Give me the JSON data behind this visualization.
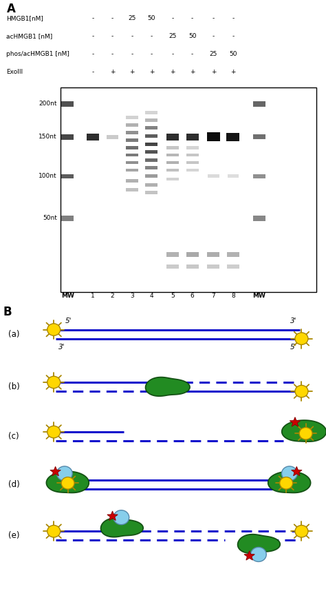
{
  "title_A": "A",
  "title_B": "B",
  "row_labels": [
    "HMGB1[nM]",
    "acHMGB1 [nM]",
    "phos/acHMGB1 [nM]",
    "ExoIII"
  ],
  "row_values": [
    [
      "-",
      "-",
      "25",
      "50",
      "-",
      "-",
      "-",
      "-"
    ],
    [
      "-",
      "-",
      "-",
      "-",
      "25",
      "50",
      "-",
      "-"
    ],
    [
      "-",
      "-",
      "-",
      "-",
      "-",
      "-",
      "25",
      "50"
    ],
    [
      "-",
      "+",
      "+",
      "+",
      "+",
      "+",
      "+",
      "+"
    ]
  ],
  "lane_labels": [
    "MW",
    "1",
    "2",
    "3",
    "4",
    "5",
    "6",
    "7",
    "8",
    "MW"
  ],
  "mw_labels": [
    "200nt",
    "150nt",
    "100nt",
    "50nt"
  ],
  "blue_line_color": "#1111cc",
  "green_shape_color": "#228B22",
  "yellow_color": "#FFD700",
  "red_star_color": "#cc0000",
  "light_blue_color": "#87CEEB"
}
